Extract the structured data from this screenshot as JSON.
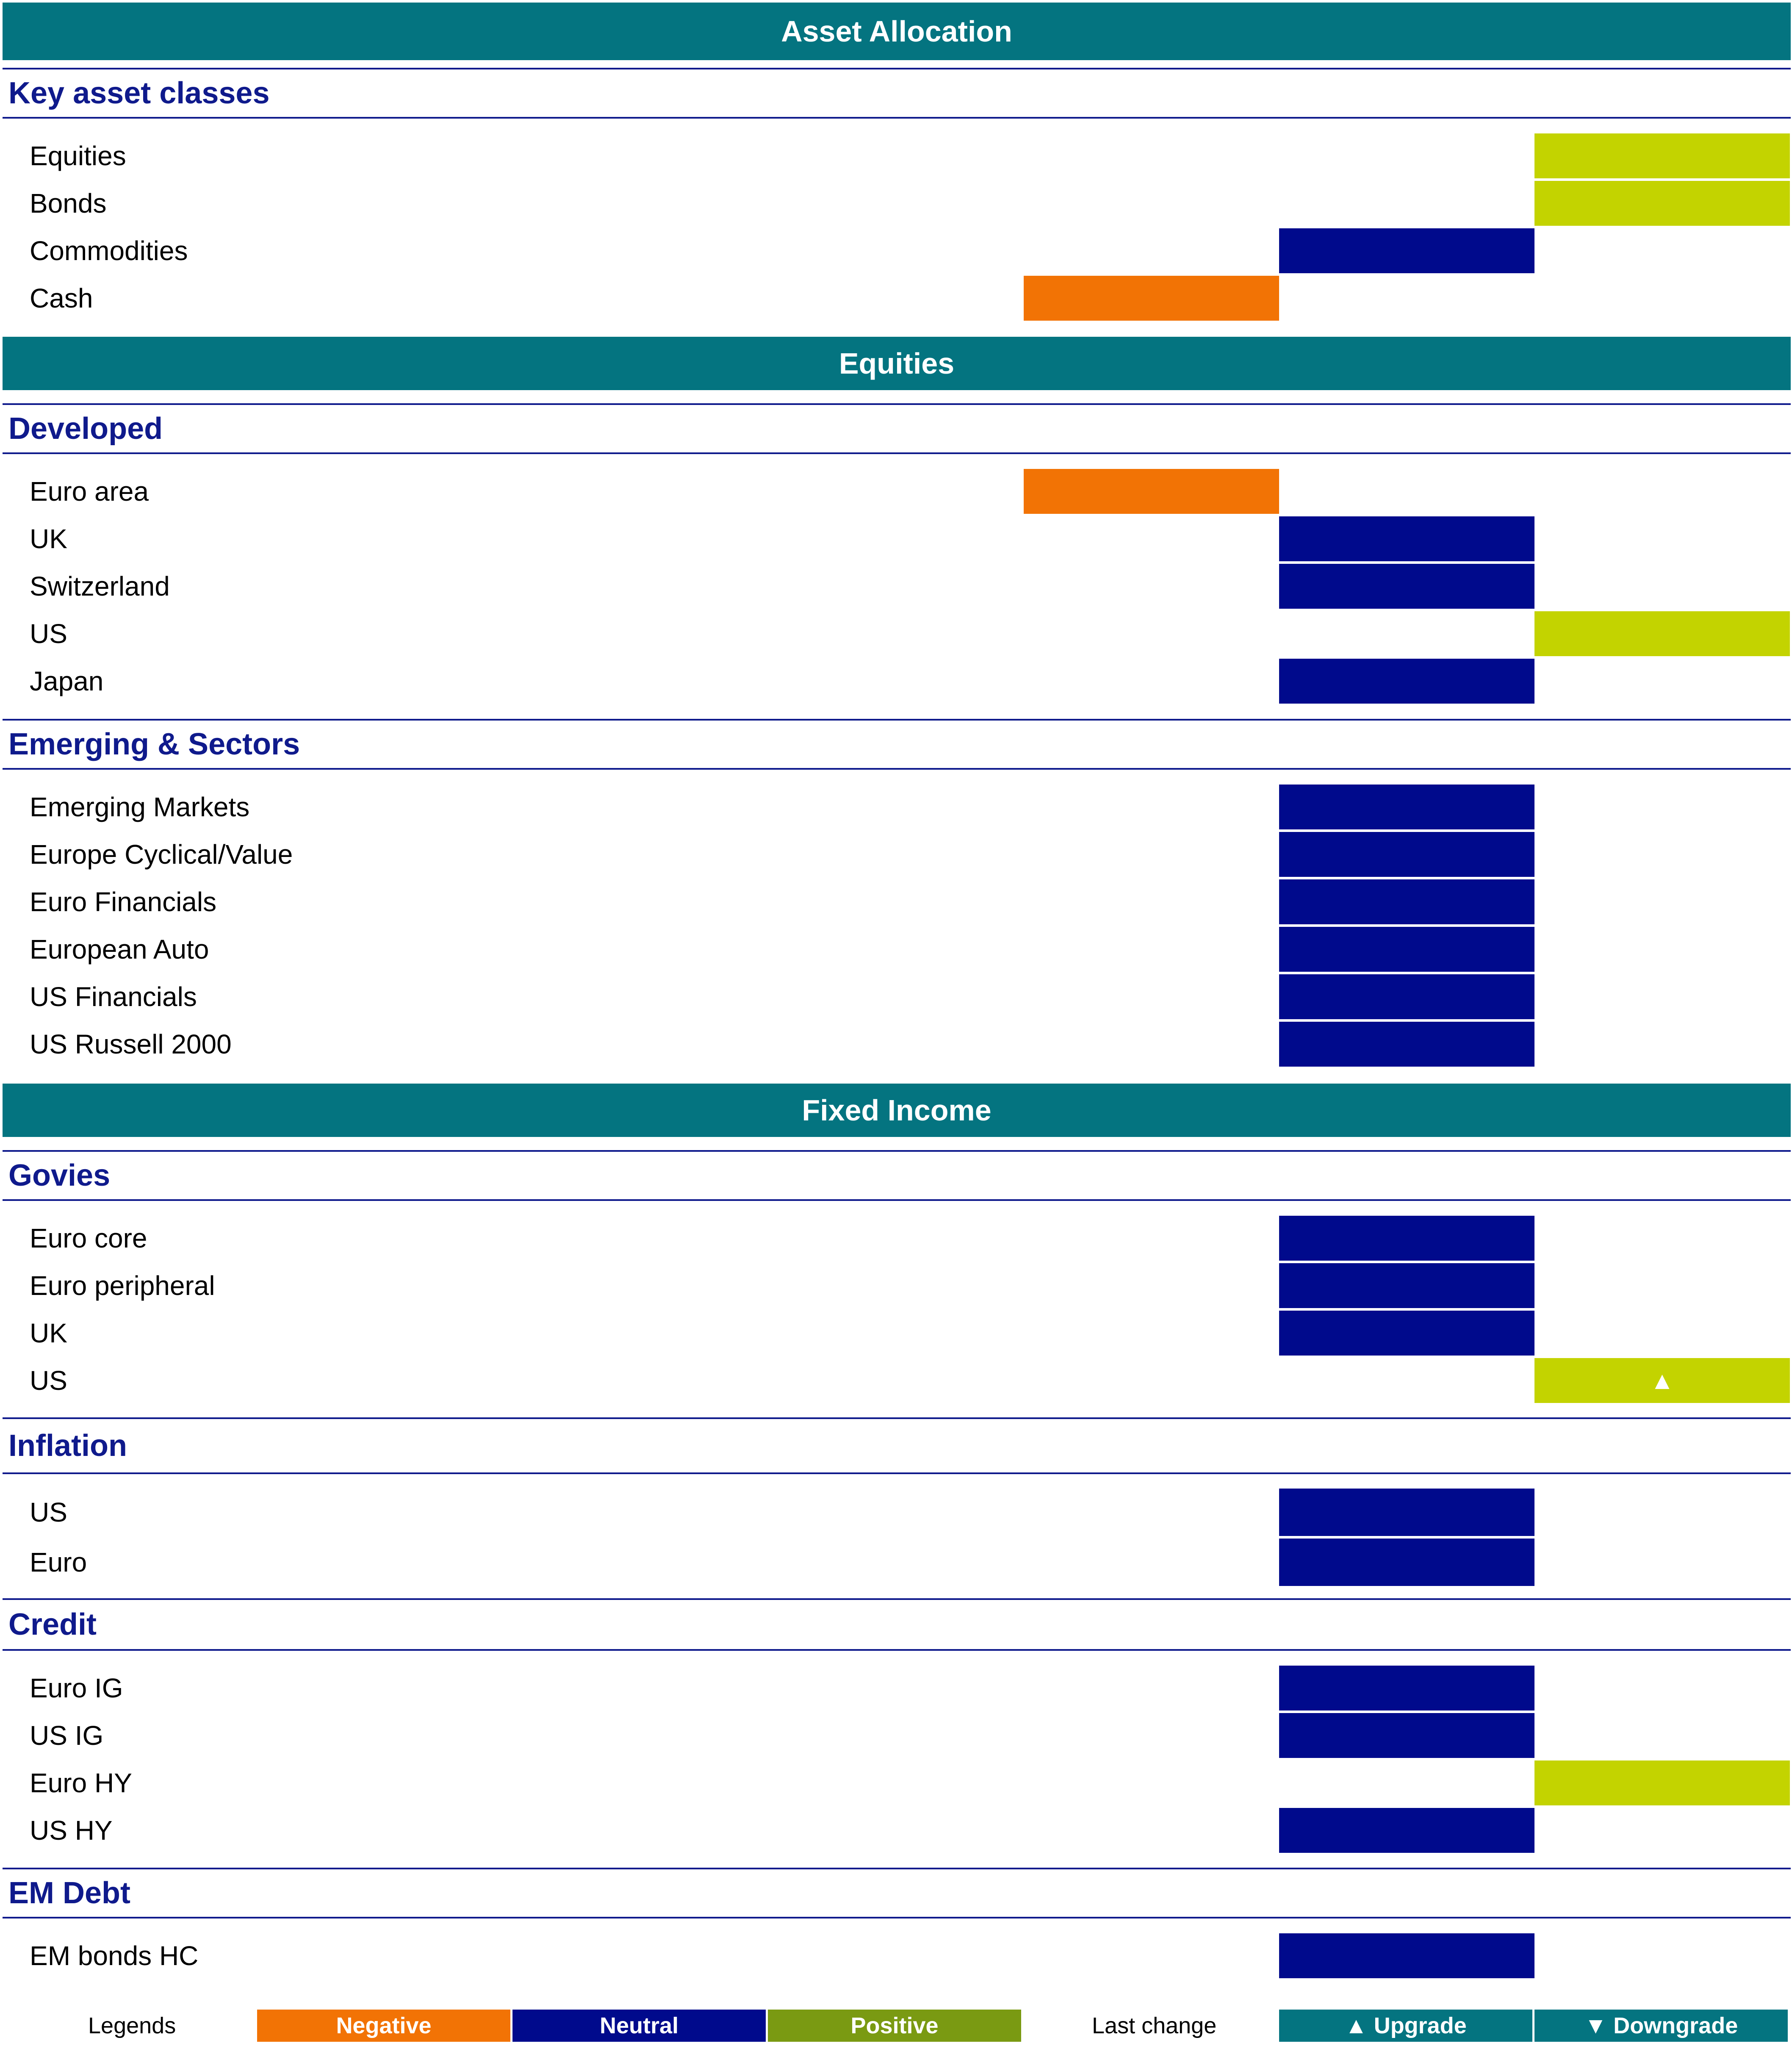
{
  "colors": {
    "header_band": "#047480",
    "subheader_text": "#0f1a8c",
    "negative": "#f27305",
    "neutral": "#000a8c",
    "positive": "#c3d300",
    "legend_positive": "#7a9a12",
    "change_box": "#047480"
  },
  "sections": [
    {
      "title": "Asset Allocation",
      "groups": [
        {
          "title": "Key asset classes",
          "rows": [
            {
              "label": "Equities",
              "view": "positive",
              "change": ""
            },
            {
              "label": "Bonds",
              "view": "positive",
              "change": ""
            },
            {
              "label": "Commodities",
              "view": "neutral",
              "change": ""
            },
            {
              "label": "Cash",
              "view": "negative",
              "change": ""
            }
          ]
        }
      ]
    },
    {
      "title": "Equities",
      "groups": [
        {
          "title": "Developed",
          "rows": [
            {
              "label": "Euro area",
              "view": "negative",
              "change": ""
            },
            {
              "label": "UK",
              "view": "neutral",
              "change": ""
            },
            {
              "label": "Switzerland",
              "view": "neutral",
              "change": ""
            },
            {
              "label": "US",
              "view": "positive",
              "change": ""
            },
            {
              "label": "Japan",
              "view": "neutral",
              "change": ""
            }
          ]
        },
        {
          "title": "Emerging & Sectors",
          "rows": [
            {
              "label": "Emerging Markets",
              "view": "neutral",
              "change": ""
            },
            {
              "label": "Europe Cyclical/Value",
              "view": "neutral",
              "change": ""
            },
            {
              "label": "Euro Financials",
              "view": "neutral",
              "change": ""
            },
            {
              "label": "European Auto",
              "view": "neutral",
              "change": ""
            },
            {
              "label": "US Financials",
              "view": "neutral",
              "change": ""
            },
            {
              "label": "US Russell 2000",
              "view": "neutral",
              "change": ""
            }
          ]
        }
      ]
    },
    {
      "title": "Fixed Income",
      "groups": [
        {
          "title": "Govies",
          "rows": [
            {
              "label": "Euro core",
              "view": "neutral",
              "change": ""
            },
            {
              "label": "Euro peripheral",
              "view": "neutral",
              "change": ""
            },
            {
              "label": "UK",
              "view": "neutral",
              "change": ""
            },
            {
              "label": "US",
              "view": "positive",
              "change": "▲"
            }
          ]
        },
        {
          "title": "Inflation",
          "rows": [
            {
              "label": "US",
              "view": "neutral",
              "change": ""
            },
            {
              "label": "Euro",
              "view": "neutral",
              "change": ""
            }
          ]
        },
        {
          "title": "Credit",
          "rows": [
            {
              "label": "Euro IG",
              "view": "neutral",
              "change": ""
            },
            {
              "label": "US IG",
              "view": "neutral",
              "change": ""
            },
            {
              "label": "Euro HY",
              "view": "positive",
              "change": ""
            },
            {
              "label": "US HY",
              "view": "neutral",
              "change": ""
            }
          ]
        },
        {
          "title": "EM Debt",
          "rows": [
            {
              "label": "EM bonds HC",
              "view": "neutral",
              "change": ""
            }
          ]
        }
      ]
    }
  ],
  "legend": {
    "title": "Legends",
    "negative": "Negative",
    "neutral": "Neutral",
    "positive": "Positive",
    "last_change": "Last change",
    "upgrade": "▲ Upgrade",
    "downgrade": "▼ Downgrade"
  }
}
